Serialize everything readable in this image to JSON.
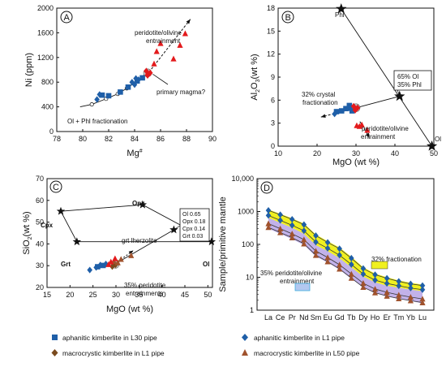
{
  "colors": {
    "l30_aphanitic": "#1f5fa8",
    "l1_aphanitic": "#1f5fa8",
    "l1_macrocrystic": "#7a4a1e",
    "l50_macrocrystic": "#a0522d",
    "red_points": "#e31a1c",
    "band_yellow": "#f0f020",
    "band_purple": "#b7a4e6"
  },
  "legend": [
    {
      "label": "aphanitic kimberlite in L30 pipe",
      "marker": "square",
      "color": "#1f5fa8"
    },
    {
      "label": "aphanitic kimberlite in L1 pipe",
      "marker": "diamond",
      "color": "#1f5fa8"
    },
    {
      "label": "macrocrystic kimberlite in L1 pipe",
      "marker": "diamond",
      "color": "#7a4a1e"
    },
    {
      "label": "macrocrystic kimberlite in L50 pipe",
      "marker": "triangle",
      "color": "#a0522d"
    }
  ],
  "chart_data": [
    {
      "panel": "A",
      "type": "scatter",
      "xlabel": "Mg#",
      "ylabel": "Ni (ppm)",
      "xlim": [
        78,
        90
      ],
      "ylim": [
        0,
        2000
      ],
      "xticks": [
        "78",
        "80",
        "82",
        "84",
        "86",
        "88",
        "90"
      ],
      "yticks": [
        "0",
        "400",
        "800",
        "1200",
        "1600",
        "2000"
      ],
      "annotations": [
        "peridotite/olivine",
        "entrainment",
        "primary magma?",
        "Ol + Phl fractionation"
      ],
      "series": [
        {
          "marker": "square",
          "color": "#1f5fa8",
          "points": [
            [
              81.5,
              590
            ],
            [
              82,
              580
            ],
            [
              82.9,
              640
            ],
            [
              83.5,
              720
            ],
            [
              84.2,
              820
            ],
            [
              84.6,
              870
            ]
          ]
        },
        {
          "marker": "diamond",
          "color": "#1f5fa8",
          "points": [
            [
              81.1,
              520
            ],
            [
              81.3,
              600
            ],
            [
              83.8,
              800
            ],
            [
              84.0,
              760
            ],
            [
              84.3,
              840
            ],
            [
              84.1,
              860
            ]
          ]
        },
        {
          "marker": "triangle-red",
          "color": "#e31a1c",
          "points": [
            [
              85.0,
              950
            ],
            [
              85.5,
              1100
            ],
            [
              85.7,
              1300
            ],
            [
              86.0,
              1430
            ],
            [
              87.0,
              1180
            ],
            [
              87.5,
              1400
            ],
            [
              87.9,
              1590
            ]
          ]
        },
        {
          "marker": "diamond-red",
          "color": "#e31a1c",
          "points": [
            [
              84.9,
              980
            ],
            [
              85.0,
              910
            ],
            [
              85.2,
              950
            ]
          ]
        }
      ],
      "fractionation_curve": {
        "x": [
          79.8,
          80.7,
          81.8,
          82.7,
          83.4,
          84.2,
          84.9
        ],
        "y": [
          400,
          440,
          530,
          610,
          700,
          820,
          950
        ]
      },
      "entrainment_arrow": {
        "x": [
          85.1,
          88.3
        ],
        "y": [
          960,
          1820
        ]
      }
    },
    {
      "panel": "B",
      "type": "scatter",
      "xlabel": "MgO (wt %)",
      "ylabel": "Al2O3 (wt %)",
      "xlim": [
        10,
        50
      ],
      "ylim": [
        0,
        18
      ],
      "xticks": [
        "10",
        "20",
        "30",
        "40",
        "50"
      ],
      "yticks": [
        "0",
        "3",
        "6",
        "9",
        "12",
        "15",
        "18"
      ],
      "endmembers": [
        {
          "name": "Phl",
          "x": 26.2,
          "y": 17.9
        },
        {
          "name": "Ol",
          "x": 49.5,
          "y": 0
        },
        {
          "name": "",
          "x": 41.2,
          "y": 6.5
        }
      ],
      "annotations": [
        "65% Ol",
        "35% Phl",
        "32% crystal",
        "fractionation",
        "peridotite/olivine",
        "entrainment"
      ],
      "series": [
        {
          "marker": "square",
          "color": "#1f5fa8",
          "points": [
            [
              25.0,
              4.5
            ],
            [
              26.3,
              4.6
            ],
            [
              27.4,
              4.9
            ],
            [
              28.3,
              5.3
            ],
            [
              29.0,
              4.6
            ]
          ]
        },
        {
          "marker": "diamond",
          "color": "#1f5fa8",
          "points": [
            [
              24.5,
              4.2
            ],
            [
              28.1,
              5.0
            ],
            [
              28.6,
              4.8
            ]
          ]
        },
        {
          "marker": "triangle-red",
          "color": "#e31a1c",
          "points": [
            [
              30.2,
              2.7
            ],
            [
              30.9,
              2.6
            ],
            [
              31.5,
              2.8
            ],
            [
              32.9,
              2.1
            ]
          ]
        },
        {
          "marker": "diamond-red",
          "color": "#e31a1c",
          "points": [
            [
              29.4,
              5.2
            ],
            [
              29.8,
              4.7
            ],
            [
              30.4,
              5.0
            ]
          ]
        }
      ]
    },
    {
      "panel": "C",
      "type": "scatter",
      "xlabel": "MgO (wt %)",
      "ylabel": "SiO2 (wt %)",
      "xlim": [
        15,
        51
      ],
      "ylim": [
        20,
        70
      ],
      "xticks": [
        "15",
        "20",
        "25",
        "30",
        "35",
        "40",
        "45",
        "50"
      ],
      "yticks": [
        "20",
        "30",
        "40",
        "50",
        "60",
        "70"
      ],
      "endmembers": [
        {
          "name": "Cpx",
          "x": 18.0,
          "y": 55.0
        },
        {
          "name": "Opx",
          "x": 35.8,
          "y": 58.0
        },
        {
          "name": "Grt",
          "x": 21.5,
          "y": 41.0
        },
        {
          "name": "Ol",
          "x": 50.8,
          "y": 41.0
        },
        {
          "name": "grt lherzolite",
          "x": 42.6,
          "y": 46.5
        }
      ],
      "composition_box": [
        "Ol 0.65",
        "Opx 0.18",
        "Cpx 0.14",
        "Grt 0.03"
      ],
      "annotations": [
        "35% peridotite",
        "entrainments"
      ],
      "series": [
        {
          "marker": "square",
          "color": "#1f5fa8",
          "points": [
            [
              26.0,
              29.5
            ],
            [
              27.2,
              30.1
            ]
          ]
        },
        {
          "marker": "diamond",
          "color": "#1f5fa8",
          "points": [
            [
              24.3,
              28.0
            ],
            [
              25.7,
              29.2
            ],
            [
              26.6,
              30.3
            ],
            [
              27.8,
              30.8
            ]
          ]
        },
        {
          "marker": "diamond-brown",
          "color": "#7a4a1e",
          "points": [
            [
              29.2,
              29.6
            ],
            [
              29.9,
              30.4
            ]
          ]
        },
        {
          "marker": "triangle",
          "color": "#a0522d",
          "points": [
            [
              29.5,
              32.0
            ],
            [
              30.4,
              31.4
            ],
            [
              31.1,
              33.0
            ],
            [
              33.3,
              34.7
            ]
          ]
        },
        {
          "marker": "triangle-red",
          "color": "#e31a1c",
          "points": [
            [
              28.4,
              30.6
            ],
            [
              28.9,
              31.8
            ],
            [
              29.8,
              33.3
            ]
          ]
        }
      ]
    },
    {
      "panel": "D",
      "type": "line",
      "xlabel": "",
      "ylabel": "Sample/primitive mantle",
      "yscale": "log",
      "ylim": [
        1,
        10000
      ],
      "yticks": [
        "1",
        "10",
        "100",
        "1000",
        "10,000"
      ],
      "categories": [
        "La",
        "Ce",
        "Pr",
        "Nd",
        "Sm",
        "Eu",
        "Gd",
        "Tb",
        "Dy",
        "Ho",
        "Er",
        "Tm",
        "Yb",
        "Lu"
      ],
      "annotations": [
        "32% fractionation",
        "35% peridotite/olivine",
        "entrainment"
      ],
      "bands": [
        {
          "name": "32% fractionation",
          "color": "#f0f020",
          "upper": [
            1150,
            850,
            620,
            430,
            200,
            125,
            80,
            42,
            20,
            13,
            10,
            8,
            6.8,
            6
          ],
          "lower": [
            650,
            450,
            320,
            210,
            95,
            62,
            38,
            20,
            10.5,
            7,
            5.5,
            4.8,
            4.2,
            3.8
          ]
        },
        {
          "name": "35% peridotite/olivine entrainment",
          "color": "#b7a4e6",
          "upper": [
            650,
            450,
            320,
            210,
            95,
            62,
            38,
            20,
            10.5,
            7,
            5.5,
            4.8,
            4.2,
            3.8
          ],
          "lower": [
            300,
            210,
            145,
            96,
            43,
            28,
            17,
            9,
            4.9,
            3.3,
            2.6,
            2.2,
            1.9,
            1.6
          ]
        }
      ],
      "series": [
        {
          "marker": "diamond",
          "color": "#1f5fa8",
          "values": [
            1080,
            800,
            580,
            400,
            185,
            115,
            74,
            38,
            18.5,
            12,
            9.3,
            7.5,
            6.3,
            5.6
          ]
        },
        {
          "marker": "diamond",
          "color": "#1f5fa8",
          "values": [
            760,
            540,
            380,
            260,
            118,
            76,
            47,
            24.5,
            12.5,
            8.2,
            6.5,
            5.5,
            4.7,
            4.2
          ]
        },
        {
          "marker": "triangle",
          "color": "#a0522d",
          "values": [
            430,
            300,
            210,
            140,
            63,
            40,
            24,
            12.6,
            6.6,
            4.4,
            3.5,
            2.9,
            2.5,
            2.2
          ]
        },
        {
          "marker": "triangle",
          "color": "#a0522d",
          "values": [
            330,
            230,
            160,
            105,
            47,
            30,
            18,
            9.5,
            5.0,
            3.4,
            2.7,
            2.25,
            1.95,
            1.7
          ]
        }
      ]
    }
  ]
}
